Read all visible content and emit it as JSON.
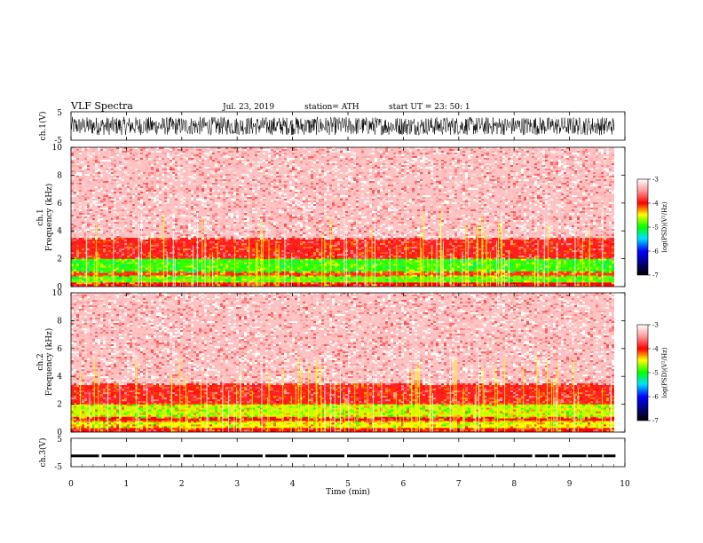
{
  "header": {
    "title": "VLF  Spectra",
    "date": "Jul.  23,  2019",
    "station": "station= ATH",
    "start_ut": "start  UT  =    23: 50: 1"
  },
  "chart_data": [
    {
      "type": "line",
      "panel": "ch1-waveform",
      "ylabel": "ch.1(V)",
      "ylim": [
        -5,
        5
      ],
      "y_ticks": [
        "5",
        "-5"
      ],
      "xlim": [
        0,
        10
      ],
      "x_end_data": 9.83,
      "amplitude_range": [
        -3.2,
        3.2
      ],
      "color": "#000000"
    },
    {
      "type": "heatmap",
      "panel": "ch1-spectrogram",
      "ylabel_lines": [
        "ch.1",
        "Frequency  (kHz)"
      ],
      "ylim": [
        0,
        10
      ],
      "y_ticks": [
        "0",
        "2",
        "4",
        "6",
        "8",
        "10"
      ],
      "xlim": [
        0,
        10
      ],
      "x_end_data": 9.83,
      "colorbar": {
        "label": "log(PSD)(V²/Hz)",
        "range": [
          -7,
          -3
        ],
        "ticks": [
          "-3",
          "-4",
          "-5",
          "-6",
          "-7"
        ]
      },
      "bands": [
        {
          "freq_khz": [
            0.0,
            0.3
          ],
          "logpsd": -4.0
        },
        {
          "freq_khz": [
            0.3,
            0.8
          ],
          "logpsd": -4.8
        },
        {
          "freq_khz": [
            0.8,
            1.1
          ],
          "logpsd": -4.1
        },
        {
          "freq_khz": [
            1.1,
            2.0
          ],
          "logpsd": -4.9
        },
        {
          "freq_khz": [
            2.0,
            3.5
          ],
          "logpsd": -3.9
        },
        {
          "freq_khz": [
            3.5,
            10.0
          ],
          "logpsd": -3.3
        }
      ]
    },
    {
      "type": "heatmap",
      "panel": "ch2-spectrogram",
      "ylabel_lines": [
        "ch.2",
        "Frequency  (kHz)"
      ],
      "ylim": [
        0,
        10
      ],
      "y_ticks": [
        "0",
        "2",
        "4",
        "6",
        "8",
        "10"
      ],
      "xlim": [
        0,
        10
      ],
      "x_end_data": 9.83,
      "colorbar": {
        "label": "log(PSD)(V²/Hz)",
        "range": [
          -7,
          -3
        ],
        "ticks": [
          "-3",
          "-4",
          "-5",
          "-6",
          "-7"
        ]
      },
      "bands": [
        {
          "freq_khz": [
            0.0,
            0.3
          ],
          "logpsd": -4.0
        },
        {
          "freq_khz": [
            0.3,
            0.8
          ],
          "logpsd": -4.5
        },
        {
          "freq_khz": [
            0.8,
            1.1
          ],
          "logpsd": -4.0
        },
        {
          "freq_khz": [
            1.1,
            2.0
          ],
          "logpsd": -4.6
        },
        {
          "freq_khz": [
            2.0,
            3.5
          ],
          "logpsd": -3.9
        },
        {
          "freq_khz": [
            3.5,
            10.0
          ],
          "logpsd": -3.3
        }
      ]
    },
    {
      "type": "line",
      "panel": "ch3-waveform",
      "ylabel": "ch.3(V)",
      "ylim": [
        -5,
        5
      ],
      "y_ticks": [
        "5",
        "-5"
      ],
      "xlim": [
        0,
        10
      ],
      "x_end_data": 9.83,
      "baseline_v": -1.2,
      "color": "#000000",
      "xlabel": "Time  (min)",
      "x_ticks": [
        "0",
        "1",
        "2",
        "3",
        "4",
        "5",
        "6",
        "7",
        "8",
        "9",
        "10"
      ]
    }
  ]
}
